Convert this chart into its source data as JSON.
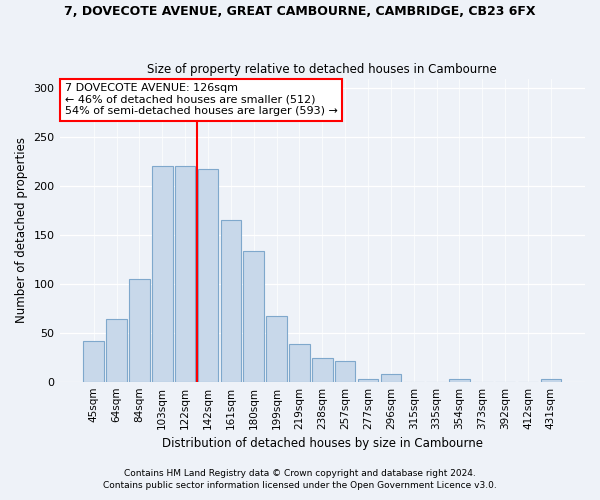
{
  "title1": "7, DOVECOTE AVENUE, GREAT CAMBOURNE, CAMBRIDGE, CB23 6FX",
  "title2": "Size of property relative to detached houses in Cambourne",
  "xlabel": "Distribution of detached houses by size in Cambourne",
  "ylabel": "Number of detached properties",
  "categories": [
    "45sqm",
    "64sqm",
    "84sqm",
    "103sqm",
    "122sqm",
    "142sqm",
    "161sqm",
    "180sqm",
    "199sqm",
    "219sqm",
    "238sqm",
    "257sqm",
    "277sqm",
    "296sqm",
    "315sqm",
    "335sqm",
    "354sqm",
    "373sqm",
    "392sqm",
    "412sqm",
    "431sqm"
  ],
  "values": [
    42,
    64,
    105,
    221,
    221,
    218,
    165,
    134,
    67,
    39,
    24,
    21,
    3,
    8,
    0,
    0,
    3,
    0,
    0,
    0,
    3
  ],
  "bar_color": "#c8d8ea",
  "bar_edge_color": "#7fa8cc",
  "vline_x": 4.5,
  "vline_color": "red",
  "annotation_text": "7 DOVECOTE AVENUE: 126sqm\n← 46% of detached houses are smaller (512)\n54% of semi-detached houses are larger (593) →",
  "annotation_box_color": "white",
  "annotation_box_edge_color": "red",
  "ylim": [
    0,
    310
  ],
  "yticks": [
    0,
    50,
    100,
    150,
    200,
    250,
    300
  ],
  "footer1": "Contains HM Land Registry data © Crown copyright and database right 2024.",
  "footer2": "Contains public sector information licensed under the Open Government Licence v3.0.",
  "bg_color": "#eef2f8",
  "plot_bg_color": "#eef2f8"
}
